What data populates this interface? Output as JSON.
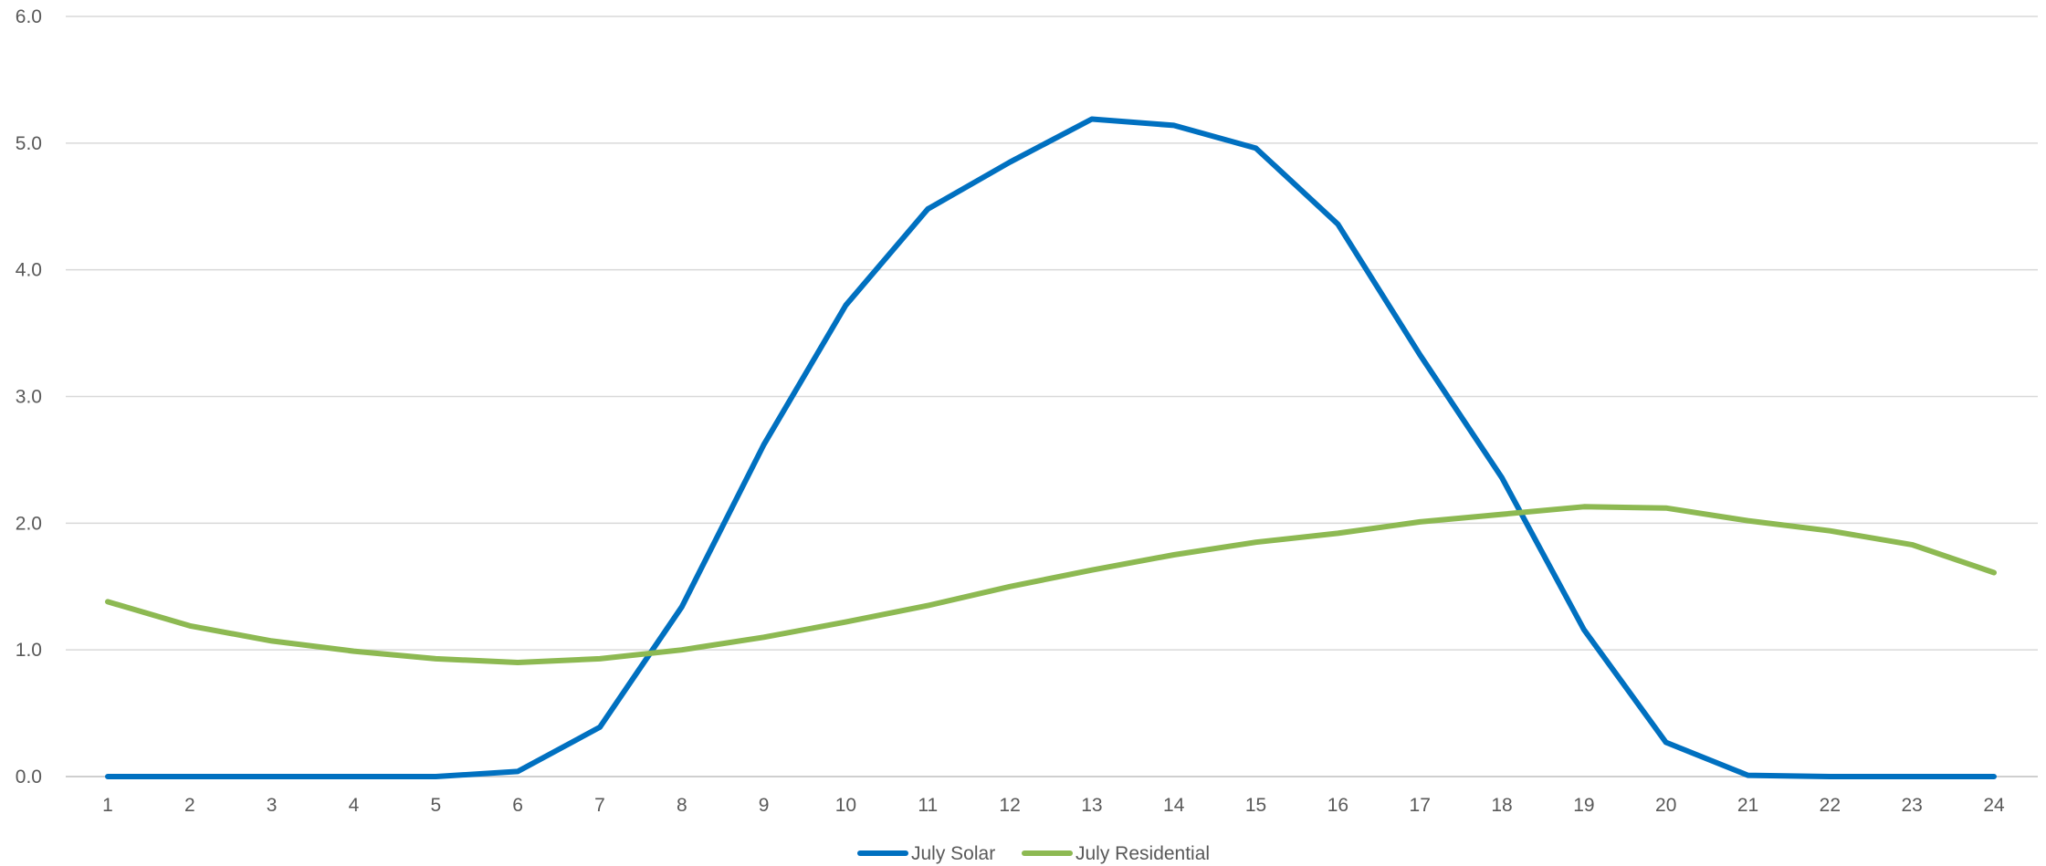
{
  "chart_data": {
    "type": "line",
    "title": "",
    "xlabel": "",
    "ylabel": "",
    "categories": [
      "1",
      "2",
      "3",
      "4",
      "5",
      "6",
      "7",
      "8",
      "9",
      "10",
      "11",
      "12",
      "13",
      "14",
      "15",
      "16",
      "17",
      "18",
      "19",
      "20",
      "21",
      "22",
      "23",
      "24"
    ],
    "ylim": [
      0,
      6
    ],
    "yticks": [
      "0.0",
      "1.0",
      "2.0",
      "3.0",
      "4.0",
      "5.0",
      "6.0"
    ],
    "grid": true,
    "legend": "bottom",
    "series": [
      {
        "name": "July Solar",
        "color": "#0070C0",
        "values": [
          0.0,
          0.0,
          0.0,
          0.0,
          0.0,
          0.04,
          0.39,
          1.34,
          2.62,
          3.72,
          4.48,
          4.85,
          5.19,
          5.14,
          4.96,
          4.36,
          3.33,
          2.36,
          1.16,
          0.27,
          0.01,
          0.0,
          0.0,
          0.0
        ]
      },
      {
        "name": "July Residential",
        "color": "#8DB952",
        "values": [
          1.38,
          1.19,
          1.07,
          0.99,
          0.93,
          0.9,
          0.93,
          1.0,
          1.1,
          1.22,
          1.35,
          1.5,
          1.63,
          1.75,
          1.85,
          1.92,
          2.01,
          2.07,
          2.13,
          2.12,
          2.02,
          1.94,
          1.83,
          1.61
        ]
      }
    ]
  }
}
